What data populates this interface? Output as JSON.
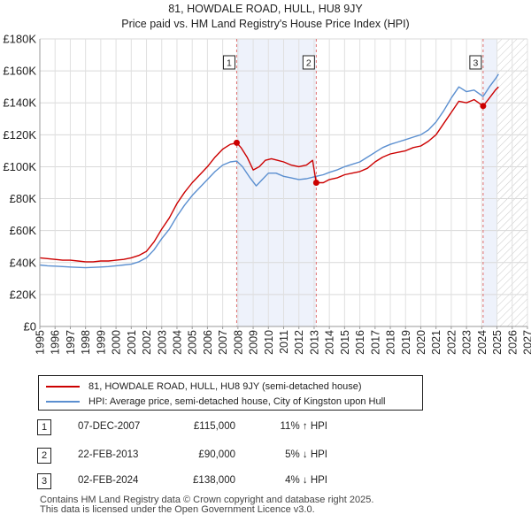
{
  "title_line1": "81, HOWDALE ROAD, HULL, HU8 9JY",
  "title_line2": "Price paid vs. HM Land Registry's House Price Index (HPI)",
  "chart_data": {
    "type": "line",
    "title": "81, HOWDALE ROAD, HULL, HU8 9JY",
    "subtitle": "Price paid vs. HM Land Registry's House Price Index (HPI)",
    "xlim": [
      1995,
      2027
    ],
    "ylim": [
      0,
      180000
    ],
    "x_ticks": [
      1995,
      1996,
      1997,
      1998,
      1999,
      2000,
      2001,
      2002,
      2003,
      2004,
      2005,
      2006,
      2007,
      2008,
      2009,
      2010,
      2011,
      2012,
      2013,
      2014,
      2015,
      2016,
      2017,
      2018,
      2019,
      2020,
      2021,
      2022,
      2023,
      2024,
      2025,
      2026,
      2027
    ],
    "y_ticks": [
      {
        "value": 0,
        "label": "£0"
      },
      {
        "value": 20000,
        "label": "£20K"
      },
      {
        "value": 40000,
        "label": "£40K"
      },
      {
        "value": 60000,
        "label": "£60K"
      },
      {
        "value": 80000,
        "label": "£80K"
      },
      {
        "value": 100000,
        "label": "£100K"
      },
      {
        "value": 120000,
        "label": "£120K"
      },
      {
        "value": 140000,
        "label": "£140K"
      },
      {
        "value": 160000,
        "label": "£160K"
      },
      {
        "value": 180000,
        "label": "£180K"
      }
    ],
    "grid": true,
    "shaded_spans": [
      [
        2007.92,
        2013.14
      ],
      [
        2024.09,
        2025.0
      ]
    ],
    "future_hatch_from": 2025.0,
    "series": [
      {
        "name": "81, HOWDALE ROAD, HULL, HU8 9JY (semi-detached house)",
        "color": "#cc0000",
        "points": [
          [
            1995.0,
            43000
          ],
          [
            1995.5,
            42500
          ],
          [
            1996.0,
            42000
          ],
          [
            1996.5,
            41500
          ],
          [
            1997.0,
            41500
          ],
          [
            1997.5,
            41000
          ],
          [
            1998.0,
            40500
          ],
          [
            1998.5,
            40500
          ],
          [
            1999.0,
            41000
          ],
          [
            1999.5,
            41000
          ],
          [
            2000.0,
            41500
          ],
          [
            2000.5,
            42000
          ],
          [
            2001.0,
            43000
          ],
          [
            2001.5,
            44500
          ],
          [
            2002.0,
            47000
          ],
          [
            2002.5,
            53000
          ],
          [
            2003.0,
            61000
          ],
          [
            2003.5,
            68000
          ],
          [
            2004.0,
            77000
          ],
          [
            2004.5,
            84000
          ],
          [
            2005.0,
            90000
          ],
          [
            2005.5,
            95000
          ],
          [
            2006.0,
            100000
          ],
          [
            2006.5,
            106000
          ],
          [
            2007.0,
            111000
          ],
          [
            2007.5,
            114000
          ],
          [
            2007.92,
            115000
          ],
          [
            2008.2,
            112000
          ],
          [
            2008.6,
            106000
          ],
          [
            2009.0,
            98000
          ],
          [
            2009.4,
            100000
          ],
          [
            2009.8,
            104000
          ],
          [
            2010.2,
            105000
          ],
          [
            2010.6,
            104000
          ],
          [
            2011.0,
            103000
          ],
          [
            2011.5,
            101000
          ],
          [
            2012.0,
            100000
          ],
          [
            2012.5,
            101000
          ],
          [
            2012.9,
            104000
          ],
          [
            2013.14,
            90000
          ],
          [
            2013.6,
            90000
          ],
          [
            2014.0,
            92000
          ],
          [
            2014.5,
            93000
          ],
          [
            2015.0,
            95000
          ],
          [
            2015.5,
            96000
          ],
          [
            2016.0,
            97000
          ],
          [
            2016.5,
            99000
          ],
          [
            2017.0,
            103000
          ],
          [
            2017.5,
            106000
          ],
          [
            2018.0,
            108000
          ],
          [
            2018.5,
            109000
          ],
          [
            2019.0,
            110000
          ],
          [
            2019.5,
            112000
          ],
          [
            2020.0,
            113000
          ],
          [
            2020.5,
            116000
          ],
          [
            2021.0,
            120000
          ],
          [
            2021.5,
            127000
          ],
          [
            2022.0,
            134000
          ],
          [
            2022.5,
            141000
          ],
          [
            2023.0,
            140000
          ],
          [
            2023.5,
            142000
          ],
          [
            2024.09,
            138000
          ],
          [
            2024.5,
            143000
          ],
          [
            2024.9,
            148000
          ],
          [
            2025.1,
            150000
          ]
        ]
      },
      {
        "name": "HPI: Average price, semi-detached house, City of Kingston upon Hull",
        "color": "#5b8fd0",
        "points": [
          [
            1995.0,
            38500
          ],
          [
            1995.5,
            38000
          ],
          [
            1996.0,
            37800
          ],
          [
            1996.5,
            37500
          ],
          [
            1997.0,
            37200
          ],
          [
            1997.5,
            37000
          ],
          [
            1998.0,
            36800
          ],
          [
            1998.5,
            37000
          ],
          [
            1999.0,
            37200
          ],
          [
            1999.5,
            37500
          ],
          [
            2000.0,
            38000
          ],
          [
            2000.5,
            38500
          ],
          [
            2001.0,
            39000
          ],
          [
            2001.5,
            40500
          ],
          [
            2002.0,
            43000
          ],
          [
            2002.5,
            48000
          ],
          [
            2003.0,
            55000
          ],
          [
            2003.5,
            61000
          ],
          [
            2004.0,
            69000
          ],
          [
            2004.5,
            76000
          ],
          [
            2005.0,
            82000
          ],
          [
            2005.5,
            87000
          ],
          [
            2006.0,
            92000
          ],
          [
            2006.5,
            97000
          ],
          [
            2007.0,
            101000
          ],
          [
            2007.5,
            103000
          ],
          [
            2007.92,
            103500
          ],
          [
            2008.3,
            100000
          ],
          [
            2008.8,
            93000
          ],
          [
            2009.2,
            88000
          ],
          [
            2009.6,
            92000
          ],
          [
            2010.0,
            96000
          ],
          [
            2010.5,
            96000
          ],
          [
            2011.0,
            94000
          ],
          [
            2011.5,
            93000
          ],
          [
            2012.0,
            92000
          ],
          [
            2012.5,
            92500
          ],
          [
            2013.14,
            94000
          ],
          [
            2013.6,
            95000
          ],
          [
            2014.0,
            96500
          ],
          [
            2014.5,
            98000
          ],
          [
            2015.0,
            100000
          ],
          [
            2015.5,
            101500
          ],
          [
            2016.0,
            103000
          ],
          [
            2016.5,
            106000
          ],
          [
            2017.0,
            109000
          ],
          [
            2017.5,
            112000
          ],
          [
            2018.0,
            114000
          ],
          [
            2018.5,
            115500
          ],
          [
            2019.0,
            117000
          ],
          [
            2019.5,
            118500
          ],
          [
            2020.0,
            120000
          ],
          [
            2020.5,
            123000
          ],
          [
            2021.0,
            128000
          ],
          [
            2021.5,
            135000
          ],
          [
            2022.0,
            143000
          ],
          [
            2022.5,
            150000
          ],
          [
            2023.0,
            147000
          ],
          [
            2023.5,
            148000
          ],
          [
            2024.09,
            144000
          ],
          [
            2024.5,
            150000
          ],
          [
            2024.9,
            155000
          ],
          [
            2025.1,
            158000
          ]
        ]
      }
    ],
    "sales": [
      {
        "num": "1",
        "x": 2007.92,
        "price": 115000
      },
      {
        "num": "2",
        "x": 2013.14,
        "price": 90000
      },
      {
        "num": "3",
        "x": 2024.09,
        "price": 138000
      }
    ]
  },
  "legend": {
    "property_label": "81, HOWDALE ROAD, HULL, HU8 9JY (semi-detached house)",
    "hpi_label": "HPI: Average price, semi-detached house, City of Kingston upon Hull",
    "property_color": "#cc0000",
    "hpi_color": "#5b8fd0"
  },
  "sales_table": [
    {
      "num": "1",
      "date": "07-DEC-2007",
      "price": "£115,000",
      "hpi": "11% ↑ HPI"
    },
    {
      "num": "2",
      "date": "22-FEB-2013",
      "price": "£90,000",
      "hpi": "5% ↓ HPI"
    },
    {
      "num": "3",
      "date": "02-FEB-2024",
      "price": "£138,000",
      "hpi": "4% ↓ HPI"
    }
  ],
  "footer_line1": "Contains HM Land Registry data © Crown copyright and database right 2025.",
  "footer_line2": "This data is licensed under the Open Government Licence v3.0."
}
